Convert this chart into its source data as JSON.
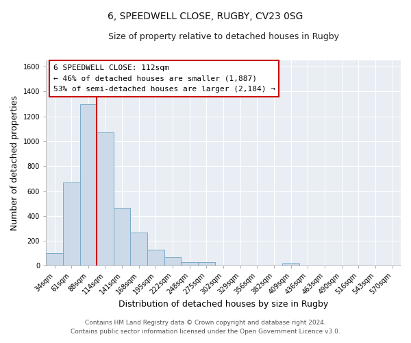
{
  "title_line1": "6, SPEEDWELL CLOSE, RUGBY, CV23 0SG",
  "title_line2": "Size of property relative to detached houses in Rugby",
  "xlabel": "Distribution of detached houses by size in Rugby",
  "ylabel": "Number of detached properties",
  "bar_labels": [
    "34sqm",
    "61sqm",
    "88sqm",
    "114sqm",
    "141sqm",
    "168sqm",
    "195sqm",
    "222sqm",
    "248sqm",
    "275sqm",
    "302sqm",
    "329sqm",
    "356sqm",
    "382sqm",
    "409sqm",
    "436sqm",
    "463sqm",
    "490sqm",
    "516sqm",
    "543sqm",
    "570sqm"
  ],
  "bar_values": [
    100,
    670,
    1300,
    1070,
    465,
    265,
    130,
    70,
    30,
    30,
    0,
    0,
    0,
    0,
    20,
    0,
    0,
    0,
    0,
    0,
    0
  ],
  "bar_color": "#ccd9e8",
  "bar_edge_color": "#7aaac8",
  "vline_color": "#cc0000",
  "ylim": [
    0,
    1650
  ],
  "yticks": [
    0,
    200,
    400,
    600,
    800,
    1000,
    1200,
    1400,
    1600
  ],
  "annotation_box_text": [
    "6 SPEEDWELL CLOSE: 112sqm",
    "← 46% of detached houses are smaller (1,887)",
    "53% of semi-detached houses are larger (2,184) →"
  ],
  "footer_line1": "Contains HM Land Registry data © Crown copyright and database right 2024.",
  "footer_line2": "Contains public sector information licensed under the Open Government Licence v3.0.",
  "fig_bg_color": "#ffffff",
  "plot_bg_color": "#e8eef4",
  "grid_color": "#ffffff",
  "title_fontsize": 10,
  "subtitle_fontsize": 9,
  "axis_label_fontsize": 9,
  "tick_fontsize": 7,
  "annotation_fontsize": 8,
  "footer_fontsize": 6.5
}
